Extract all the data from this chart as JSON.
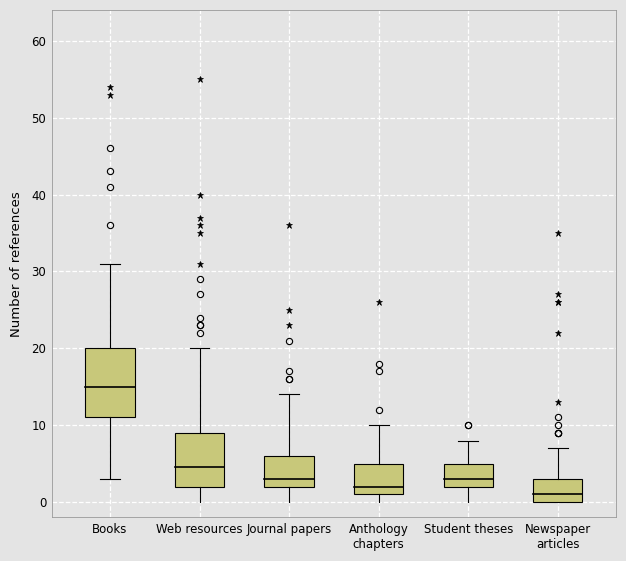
{
  "categories": [
    "Books",
    "Web resources",
    "Journal papers",
    "Anthology\nchapters",
    "Student theses",
    "Newspaper\narticles"
  ],
  "box_color": "#c8c87a",
  "box_edge_color": "#000000",
  "median_color": "#000000",
  "whisker_color": "#000000",
  "flier_color": "#000000",
  "ylabel": "Number of references",
  "ylim": [
    -2,
    64
  ],
  "yticks": [
    0,
    10,
    20,
    30,
    40,
    50,
    60
  ],
  "background_color": "#e4e4e4",
  "grid_color": "#ffffff",
  "title": "",
  "boxes": [
    {
      "q1": 11,
      "median": 15,
      "q3": 20,
      "whisker_low": 3,
      "whisker_high": 31,
      "outliers_circle": [
        36,
        41,
        43,
        46
      ],
      "outliers_star": [
        53,
        54
      ]
    },
    {
      "q1": 2,
      "median": 4.5,
      "q3": 9,
      "whisker_low": 0,
      "whisker_high": 20,
      "outliers_circle": [
        22,
        23,
        23,
        24,
        27,
        29
      ],
      "outliers_star": [
        31,
        35,
        36,
        37,
        40,
        55
      ]
    },
    {
      "q1": 2,
      "median": 3,
      "q3": 6,
      "whisker_low": 0,
      "whisker_high": 14,
      "outliers_circle": [
        16,
        16,
        17,
        21
      ],
      "outliers_star": [
        23,
        25,
        36
      ]
    },
    {
      "q1": 1,
      "median": 2,
      "q3": 5,
      "whisker_low": 0,
      "whisker_high": 10,
      "outliers_circle": [
        12,
        17,
        18
      ],
      "outliers_star": [
        26
      ]
    },
    {
      "q1": 2,
      "median": 3,
      "q3": 5,
      "whisker_low": 0,
      "whisker_high": 8,
      "outliers_circle": [
        10,
        10
      ],
      "outliers_star": []
    },
    {
      "q1": 0,
      "median": 1,
      "q3": 3,
      "whisker_low": 0,
      "whisker_high": 7,
      "outliers_circle": [
        9,
        9,
        9,
        10,
        11
      ],
      "outliers_star": [
        13,
        22,
        26,
        26,
        27,
        35
      ]
    }
  ],
  "figsize": [
    6.26,
    5.61
  ],
  "dpi": 100
}
